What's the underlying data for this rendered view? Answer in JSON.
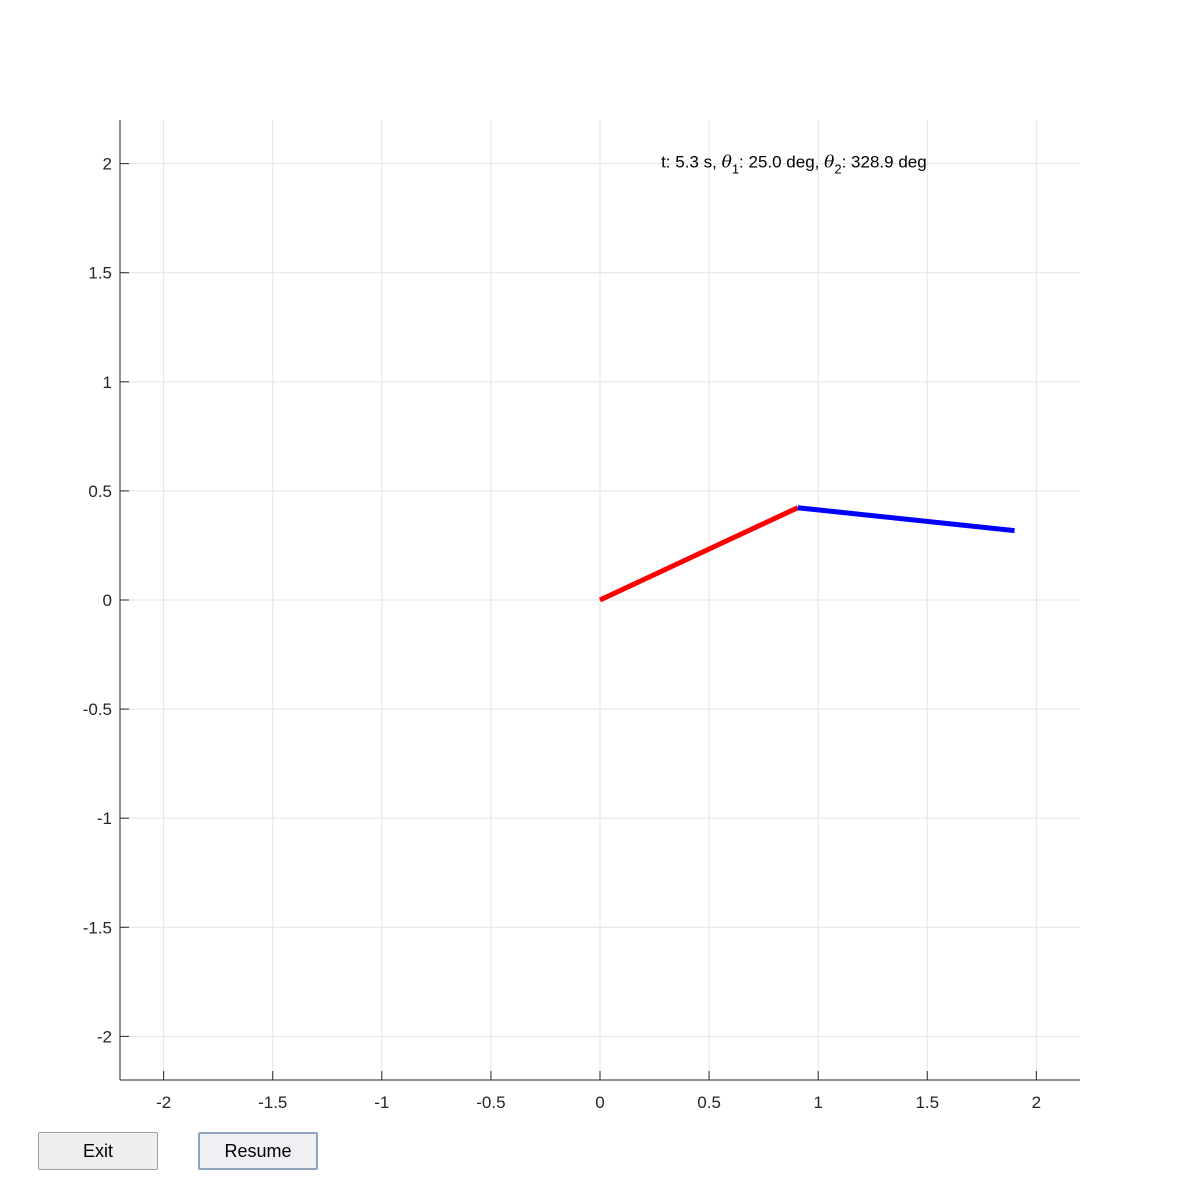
{
  "chart_data": {
    "type": "line",
    "xlim": [
      -2.2,
      2.2
    ],
    "ylim": [
      -2.2,
      2.2
    ],
    "xticks": [
      -2,
      -1.5,
      -1,
      -0.5,
      0,
      0.5,
      1,
      1.5,
      2
    ],
    "yticks": [
      -2,
      -1.5,
      -1,
      -0.5,
      0,
      0.5,
      1,
      1.5,
      2
    ],
    "xtick_labels": [
      "-2",
      "-1.5",
      "-1",
      "-0.5",
      "0",
      "0.5",
      "1",
      "1.5",
      "2"
    ],
    "ytick_labels": [
      "-2",
      "-1.5",
      "-1",
      "-0.5",
      "0",
      "0.5",
      "1",
      "1.5",
      "2"
    ],
    "grid": true,
    "series": [
      {
        "color": "#ff0000",
        "x": [
          0,
          0.906
        ],
        "y": [
          0,
          0.423
        ]
      },
      {
        "color": "#0000ff",
        "x": [
          0.906,
          1.9
        ],
        "y": [
          0.423,
          0.318
        ]
      }
    ],
    "annotation": {
      "prefix": "t: 5.3 s, ",
      "theta1_symbol": "θ",
      "theta1_sub": "1",
      "theta1_text": ": 25.0 deg, ",
      "theta2_symbol": "θ",
      "theta2_sub": "2",
      "theta2_text": ": 328.9 deg",
      "x": 0.28,
      "y": 2.0
    }
  },
  "buttons": {
    "exit_label": "Exit",
    "resume_label": "Resume"
  }
}
